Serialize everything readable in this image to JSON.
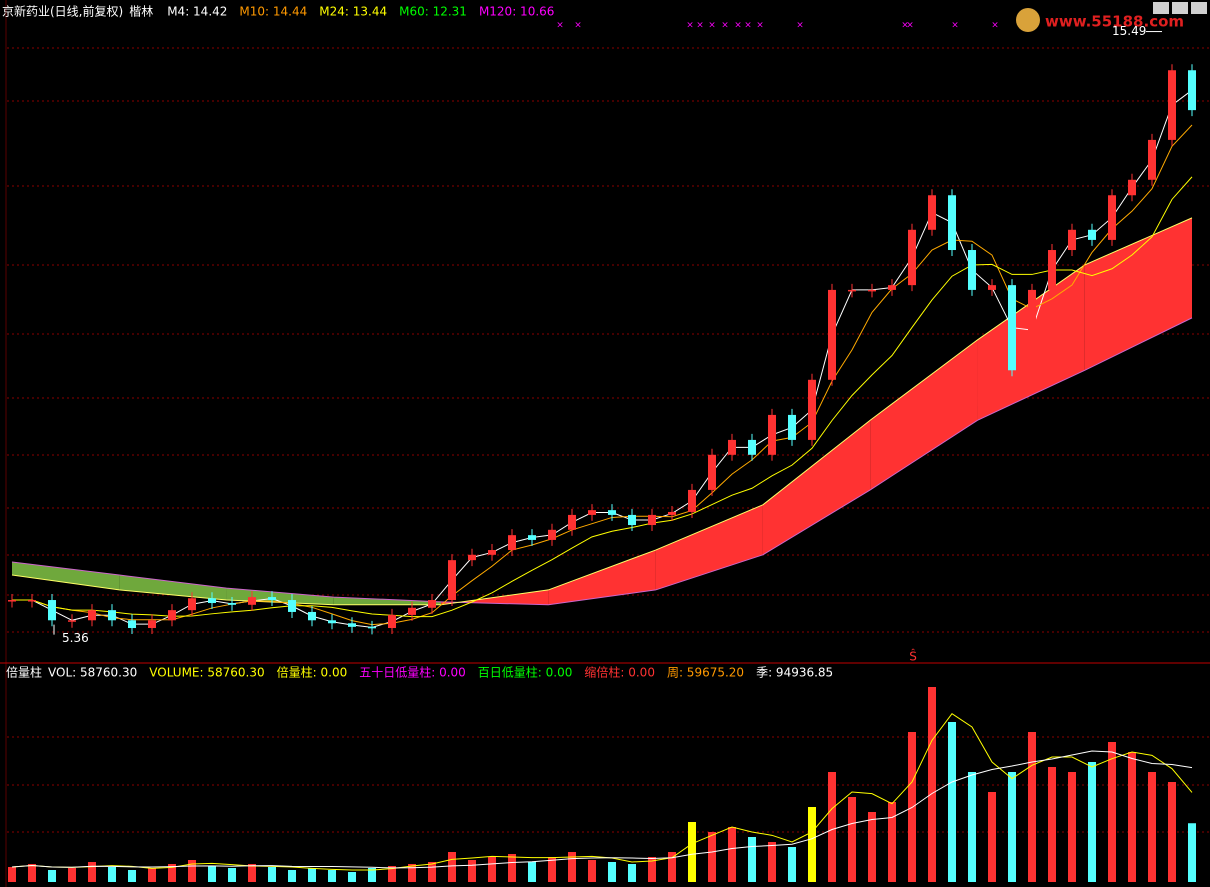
{
  "header": {
    "title": "京新药业(日线,前复权)",
    "indicator": "楷林",
    "items": [
      {
        "text": "M4: 14.42",
        "color": "#ffffff"
      },
      {
        "text": "M10: 14.44",
        "color": "#ff9900"
      },
      {
        "text": "M24: 13.44",
        "color": "#ffff00"
      },
      {
        "text": "M60: 12.31",
        "color": "#00ff00"
      },
      {
        "text": "M120: 10.66",
        "color": "#ff00ff"
      }
    ]
  },
  "volume_header": {
    "title": "倍量柱",
    "items": [
      {
        "text": "VOL: 58760.30",
        "color": "#ffffff"
      },
      {
        "text": "VOLUME: 58760.30",
        "color": "#ffff00"
      },
      {
        "text": "倍量柱: 0.00",
        "color": "#ffff00"
      },
      {
        "text": "五十日低量柱: 0.00",
        "color": "#ff00ff"
      },
      {
        "text": "百日低量柱: 0.00",
        "color": "#00ff00"
      },
      {
        "text": "缩倍柱: 0.00",
        "color": "#ff3232"
      },
      {
        "text": "周: 59675.20",
        "color": "#ff9900"
      },
      {
        "text": "季: 94936.85",
        "color": "#ffffff"
      }
    ]
  },
  "logo": "www.55188.com",
  "signal": "Ŝ",
  "chart_data": {
    "type": "candlestick",
    "values": [
      5.94,
      5.94,
      5.6,
      5.6,
      5.77,
      5.6,
      5.47,
      5.6,
      5.77,
      5.97,
      5.89,
      5.86,
      5.99,
      5.94,
      5.74,
      5.6,
      5.55,
      5.49,
      5.47,
      5.69,
      5.81,
      5.94,
      6.61,
      6.7,
      6.78,
      7.03,
      6.95,
      7.12,
      7.37,
      7.45,
      7.37,
      7.2,
      7.37,
      7.42,
      7.79,
      8.38,
      8.63,
      8.38,
      9.05,
      8.63,
      9.64,
      11.15,
      11.15,
      11.15,
      11.23,
      12.16,
      12.74,
      11.82,
      11.15,
      11.23,
      9.8,
      11.15,
      11.82,
      12.16,
      11.99,
      12.74,
      13.0,
      13.67,
      14.84,
      14.17
    ],
    "volume": [
      15000,
      18000,
      12000,
      14000,
      20000,
      15000,
      12000,
      14000,
      18000,
      22000,
      16000,
      14000,
      18000,
      15000,
      12000,
      14000,
      12000,
      10000,
      14000,
      16000,
      18000,
      20000,
      30000,
      22000,
      25000,
      28000,
      20000,
      25000,
      30000,
      22000,
      20000,
      18000,
      25000,
      30000,
      60000,
      50000,
      55000,
      45000,
      40000,
      35000,
      75000,
      110000,
      85000,
      70000,
      80000,
      150000,
      195000,
      160000,
      110000,
      90000,
      110000,
      150000,
      115000,
      110000,
      120000,
      140000,
      130000,
      110000,
      100000,
      58760.3
    ],
    "ylim": [
      5,
      16
    ],
    "volume_lim": [
      0,
      200000
    ],
    "band": {
      "slow": [
        6.58,
        6.36,
        6.14,
        5.99,
        5.91,
        5.86,
        6.11,
        6.7,
        7.79,
        8.96,
        9.8,
        10.68
      ],
      "fast": [
        6.36,
        6.11,
        5.94,
        5.86,
        5.86,
        6.11,
        6.78,
        7.54,
        8.96,
        10.31,
        11.57,
        12.36
      ]
    },
    "annotations": {
      "high": 15.49,
      "low": 5.36
    },
    "colors": {
      "up": "#ff3232",
      "down": "#54ffff",
      "double": "#ffff00",
      "band_up": "#ff3232",
      "band_down": "#6fa83c"
    }
  }
}
